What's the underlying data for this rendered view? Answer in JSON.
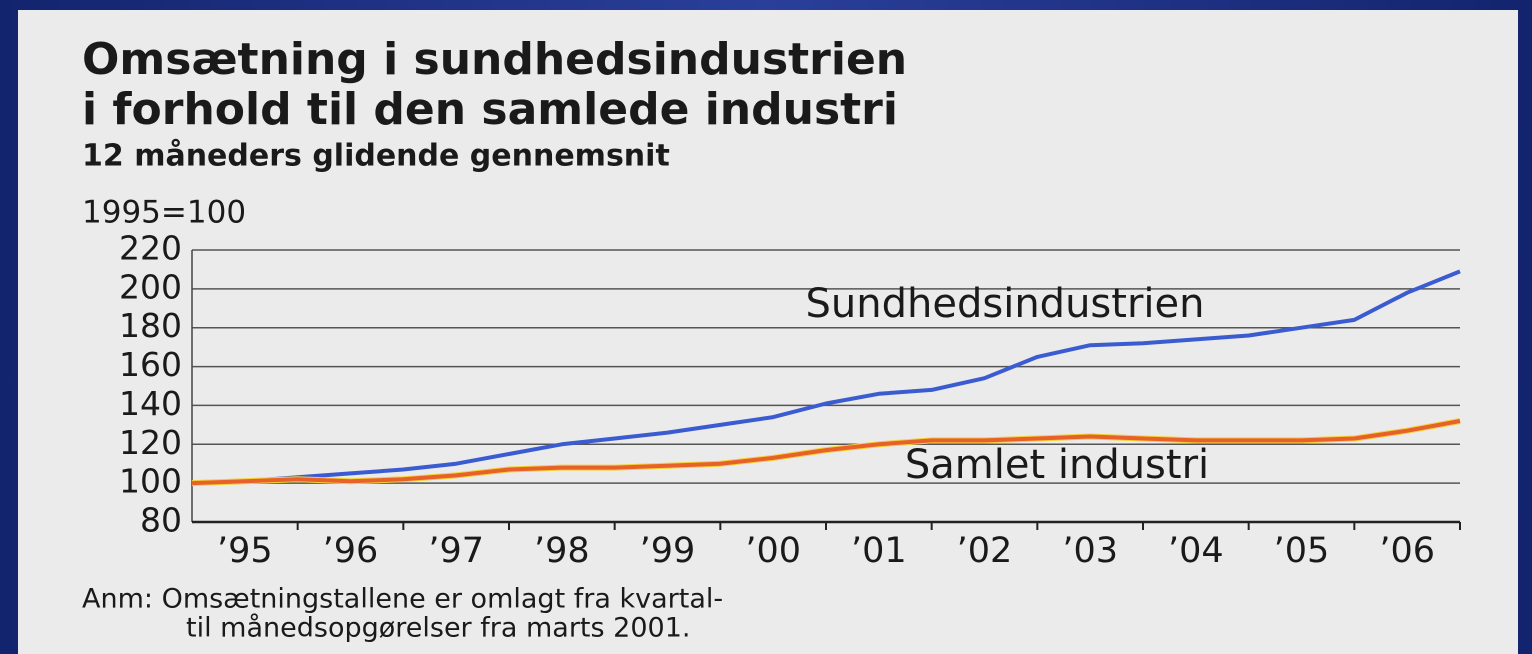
{
  "chart_data": {
    "type": "line",
    "title": [
      "Omsætning i sundhedsindustrien",
      "i forhold til den samlede industri"
    ],
    "subtitle": "12 måneders glidende gennemsnit",
    "y_axis_label": "1995=100",
    "categories": [
      "’95",
      "’96",
      "’97",
      "’98",
      "’99",
      "’00",
      "’01",
      "’02",
      "’03",
      "’04",
      "’05",
      "’06"
    ],
    "x": [
      1995,
      1995.5,
      1996,
      1996.5,
      1997,
      1997.5,
      1998,
      1998.5,
      1999,
      1999.5,
      2000,
      2000.5,
      2001,
      2001.5,
      2002,
      2002.5,
      2003,
      2003.5,
      2004,
      2004.5,
      2005,
      2005.5,
      2006,
      2006.5,
      2007
    ],
    "xlim": [
      1995,
      2007
    ],
    "xticks": [
      1996,
      1997,
      1998,
      1999,
      2000,
      2001,
      2002,
      2003,
      2004,
      2005,
      2006,
      2007
    ],
    "ylim": [
      80,
      220
    ],
    "yticks": [
      80,
      100,
      120,
      140,
      160,
      180,
      200,
      220
    ],
    "grid": true,
    "series": [
      {
        "name": "Sundhedsindustrien",
        "color": "#3a5cd0",
        "values": [
          100,
          101,
          103,
          105,
          107,
          110,
          115,
          120,
          123,
          126,
          130,
          134,
          141,
          146,
          148,
          154,
          165,
          171,
          172,
          174,
          176,
          180,
          184,
          198,
          209
        ]
      },
      {
        "name": "Samlet industri",
        "color": "#e8602a",
        "values": [
          100,
          101,
          102,
          101,
          102,
          104,
          107,
          108,
          108,
          109,
          110,
          113,
          117,
          120,
          122,
          122,
          123,
          124,
          123,
          122,
          122,
          122,
          123,
          127,
          132
        ]
      }
    ],
    "note": [
      "Anm: Omsætningstallene er omlagt fra kvartal-",
      "til månedsopgørelser fra marts 2001."
    ]
  }
}
